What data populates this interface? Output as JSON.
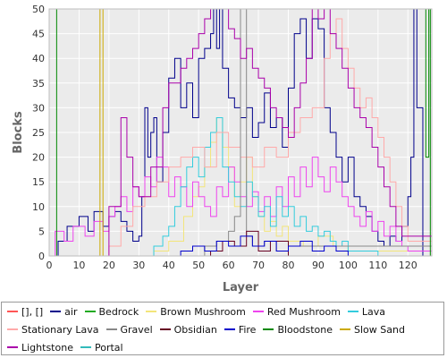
{
  "chart_data": {
    "type": "line",
    "title": "",
    "xlabel": "Layer",
    "ylabel": "Blocks",
    "xlim": [
      0,
      128
    ],
    "ylim": [
      0,
      50
    ],
    "xticks": [
      0,
      10,
      20,
      30,
      40,
      50,
      60,
      70,
      80,
      90,
      100,
      110,
      120
    ],
    "yticks": [
      0,
      5,
      10,
      15,
      20,
      25,
      30,
      35,
      40,
      45,
      50
    ],
    "grid": true,
    "legend_position": "bottom",
    "series": [
      {
        "name": "[], []",
        "color": "#ff5555",
        "x": [
          0,
          128
        ],
        "y": [
          0,
          0
        ]
      },
      {
        "name": "air",
        "color": "#00008b",
        "x": [
          0,
          3,
          6,
          10,
          13,
          15,
          18,
          20,
          22,
          24,
          26,
          28,
          30,
          31,
          32,
          33,
          34,
          35,
          36,
          38,
          40,
          42,
          44,
          46,
          48,
          50,
          52,
          54,
          55,
          56,
          57,
          58,
          60,
          62,
          64,
          66,
          68,
          70,
          72,
          74,
          76,
          78,
          80,
          82,
          84,
          86,
          88,
          90,
          92,
          94,
          96,
          98,
          100,
          102,
          104,
          106,
          108,
          110,
          112,
          114,
          116,
          118,
          120,
          121,
          122,
          123,
          125,
          128
        ],
        "y": [
          0,
          3,
          6,
          8,
          5,
          9,
          6,
          8,
          9,
          7,
          5,
          3,
          4,
          12,
          30,
          20,
          25,
          28,
          15,
          25,
          36,
          40,
          30,
          35,
          28,
          40,
          42,
          45,
          50,
          42,
          50,
          38,
          32,
          30,
          28,
          30,
          24,
          27,
          33,
          26,
          28,
          22,
          34,
          45,
          48,
          40,
          48,
          46,
          30,
          25,
          20,
          15,
          20,
          12,
          10,
          8,
          5,
          3,
          2,
          4,
          3,
          6,
          12,
          20,
          50,
          30,
          0,
          0
        ]
      },
      {
        "name": "Bedrock",
        "color": "#22aa22",
        "x": [
          0,
          128
        ],
        "y": [
          0,
          0
        ]
      },
      {
        "name": "Brown Mushroom",
        "color": "#f3e57a",
        "x": [
          0,
          20,
          30,
          35,
          40,
          45,
          48,
          50,
          52,
          54,
          56,
          58,
          60,
          62,
          64,
          66,
          68,
          70,
          72,
          74,
          76,
          78,
          80,
          85,
          90,
          95,
          100,
          128
        ],
        "y": [
          0,
          0,
          0,
          1,
          3,
          8,
          12,
          14,
          18,
          23,
          28,
          22,
          18,
          10,
          15,
          20,
          12,
          8,
          5,
          7,
          4,
          6,
          3,
          2,
          4,
          2,
          1,
          0
        ]
      },
      {
        "name": "Red Mushroom",
        "color": "#ee44ee",
        "x": [
          0,
          2,
          5,
          8,
          12,
          15,
          18,
          20,
          22,
          24,
          26,
          28,
          30,
          32,
          34,
          36,
          38,
          40,
          42,
          44,
          46,
          48,
          50,
          52,
          54,
          56,
          58,
          60,
          62,
          64,
          66,
          68,
          70,
          72,
          74,
          76,
          78,
          80,
          82,
          84,
          86,
          88,
          90,
          92,
          94,
          96,
          98,
          100,
          102,
          104,
          106,
          108,
          110,
          112,
          114,
          116,
          118,
          120,
          128
        ],
        "y": [
          0,
          5,
          3,
          6,
          4,
          7,
          5,
          8,
          10,
          12,
          9,
          14,
          12,
          16,
          14,
          20,
          18,
          12,
          16,
          14,
          10,
          15,
          12,
          10,
          8,
          14,
          12,
          18,
          15,
          12,
          10,
          13,
          9,
          12,
          8,
          14,
          10,
          16,
          12,
          18,
          14,
          20,
          16,
          13,
          18,
          15,
          12,
          10,
          8,
          6,
          9,
          5,
          7,
          4,
          6,
          3,
          2,
          1,
          0
        ]
      },
      {
        "name": "Lava",
        "color": "#33ccdd",
        "x": [
          0,
          30,
          35,
          38,
          40,
          42,
          44,
          46,
          48,
          50,
          52,
          54,
          56,
          58,
          60,
          62,
          64,
          66,
          68,
          70,
          72,
          74,
          76,
          78,
          80,
          82,
          84,
          86,
          88,
          90,
          92,
          94,
          96,
          98,
          100,
          110,
          128
        ],
        "y": [
          0,
          0,
          2,
          4,
          6,
          10,
          14,
          18,
          20,
          16,
          22,
          25,
          28,
          18,
          15,
          12,
          10,
          15,
          12,
          8,
          10,
          6,
          12,
          8,
          10,
          6,
          8,
          5,
          6,
          4,
          5,
          3,
          2,
          3,
          1,
          0,
          0
        ]
      },
      {
        "name": "Stationary Lava",
        "color": "#ffaaaa",
        "x": [
          0,
          16,
          20,
          24,
          28,
          32,
          36,
          40,
          44,
          48,
          52,
          56,
          60,
          64,
          68,
          72,
          76,
          80,
          84,
          88,
          92,
          94,
          96,
          98,
          100,
          102,
          104,
          106,
          108,
          110,
          112,
          114,
          116,
          118,
          120,
          128
        ],
        "y": [
          0,
          0,
          2,
          6,
          10,
          12,
          15,
          18,
          20,
          22,
          18,
          25,
          22,
          20,
          18,
          22,
          20,
          25,
          28,
          30,
          40,
          45,
          48,
          42,
          38,
          34,
          30,
          32,
          28,
          24,
          20,
          15,
          10,
          6,
          3,
          0
        ]
      },
      {
        "name": "Gravel",
        "color": "#888888",
        "x": [
          0,
          48,
          52,
          56,
          60,
          62,
          64,
          66,
          68,
          72,
          76,
          80,
          128
        ],
        "y": [
          0,
          0,
          2,
          3,
          5,
          8,
          50,
          4,
          2,
          3,
          1,
          2,
          0
        ]
      },
      {
        "name": "Obsidian",
        "color": "#660022",
        "x": [
          0,
          50,
          54,
          58,
          62,
          66,
          70,
          74,
          80,
          128
        ],
        "y": [
          0,
          0,
          1,
          3,
          2,
          5,
          1,
          3,
          0,
          0
        ]
      },
      {
        "name": "Fire",
        "color": "#0000cc",
        "x": [
          0,
          40,
          44,
          48,
          52,
          56,
          60,
          64,
          68,
          72,
          76,
          80,
          84,
          88,
          92,
          96,
          100,
          128
        ],
        "y": [
          0,
          0,
          1,
          2,
          1,
          3,
          2,
          4,
          2,
          3,
          1,
          2,
          3,
          1,
          2,
          1,
          0,
          0
        ]
      },
      {
        "name": "Bloodstone",
        "color": "#008800",
        "x": [
          0,
          2,
          2.5,
          125,
          126,
          127,
          127.5,
          128
        ],
        "y": [
          0,
          0,
          50,
          50,
          20,
          50,
          0,
          0
        ]
      },
      {
        "name": "Slow Sand",
        "color": "#ccaa00",
        "x": [
          0,
          16,
          17,
          18,
          128
        ],
        "y": [
          0,
          0,
          50,
          0,
          0
        ]
      },
      {
        "name": "Lightstone",
        "color": "#aa00aa",
        "x": [
          0,
          20,
          24,
          26,
          28,
          30,
          34,
          38,
          40,
          44,
          46,
          48,
          50,
          52,
          54,
          56,
          58,
          60,
          62,
          64,
          66,
          68,
          70,
          72,
          74,
          76,
          78,
          80,
          82,
          84,
          86,
          88,
          90,
          92,
          94,
          96,
          98,
          100,
          102,
          104,
          106,
          108,
          110,
          112,
          114,
          116,
          118,
          128
        ],
        "y": [
          0,
          10,
          28,
          20,
          14,
          12,
          18,
          30,
          35,
          38,
          40,
          42,
          45,
          48,
          50,
          50,
          50,
          46,
          44,
          40,
          42,
          38,
          36,
          34,
          30,
          28,
          26,
          24,
          30,
          35,
          40,
          50,
          48,
          50,
          45,
          42,
          38,
          34,
          30,
          28,
          26,
          22,
          18,
          14,
          10,
          6,
          4,
          0
        ]
      },
      {
        "name": "Portal",
        "color": "#33bbbb",
        "x": [
          0,
          128
        ],
        "y": [
          0,
          0
        ]
      }
    ]
  }
}
